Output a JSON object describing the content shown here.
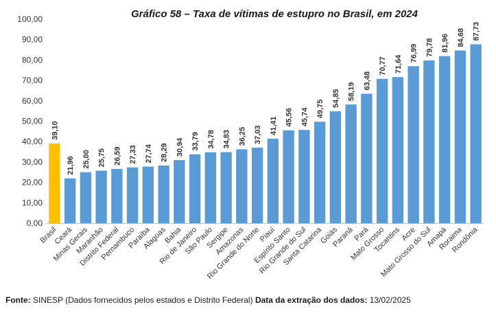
{
  "chart_data": {
    "type": "bar",
    "title": "Gráfico 58 – Taxa de vítimas de estupro no Brasil, em 2024",
    "xlabel": "",
    "ylabel": "",
    "ylim": [
      0,
      100
    ],
    "yticks": [
      "0,00",
      "10,00",
      "20,00",
      "30,00",
      "40,00",
      "50,00",
      "60,00",
      "70,00",
      "80,00",
      "90,00",
      "100,00"
    ],
    "grid": false,
    "legend": "none",
    "colors": {
      "highlight": "#FFC000",
      "default": "#5B9BD5"
    },
    "categories": [
      "Brasil",
      "Ceará",
      "Minas Gerais",
      "Maranhão",
      "Distrito Federal",
      "Pernambuco",
      "Paraíba",
      "Alagoas",
      "Bahia",
      "Rio de Janeiro",
      "São Paulo",
      "Sergipe",
      "Amazonas",
      "Rio Grande do Norte",
      "Piauí",
      "Espírito Santo",
      "Rio Grande do Sul",
      "Santa Catarina",
      "Goiás",
      "Paraná",
      "Pará",
      "Mato Grosso",
      "Tocantins",
      "Acre",
      "Mato Grosso do Sul",
      "Amapá",
      "Roraima",
      "Rondônia"
    ],
    "values": [
      39.1,
      21.96,
      25.0,
      25.75,
      26.59,
      27.33,
      27.74,
      28.29,
      30.94,
      33.79,
      34.78,
      34.83,
      36.25,
      37.03,
      41.41,
      45.56,
      45.74,
      49.75,
      54.85,
      58.19,
      63.48,
      70.77,
      71.64,
      76.99,
      79.78,
      81.96,
      84.68,
      87.73
    ],
    "value_labels": [
      "39,10",
      "21,96",
      "25,00",
      "25,75",
      "26,59",
      "27,33",
      "27,74",
      "28,29",
      "30,94",
      "33,79",
      "34,78",
      "34,83",
      "36,25",
      "37,03",
      "41,41",
      "45,56",
      "45,74",
      "49,75",
      "54,85",
      "58,19",
      "63,48",
      "70,77",
      "71,64",
      "76,99",
      "79,78",
      "81,96",
      "84,68",
      "87,73"
    ],
    "highlight_category": "Brasil"
  },
  "footer": {
    "source_label": "Fonte:",
    "source_text": "SINESP (Dados fornecidos pelos estados e Distrito Federal)",
    "date_label": "Data da extração dos dados:",
    "date_text": "13/02/2025"
  }
}
